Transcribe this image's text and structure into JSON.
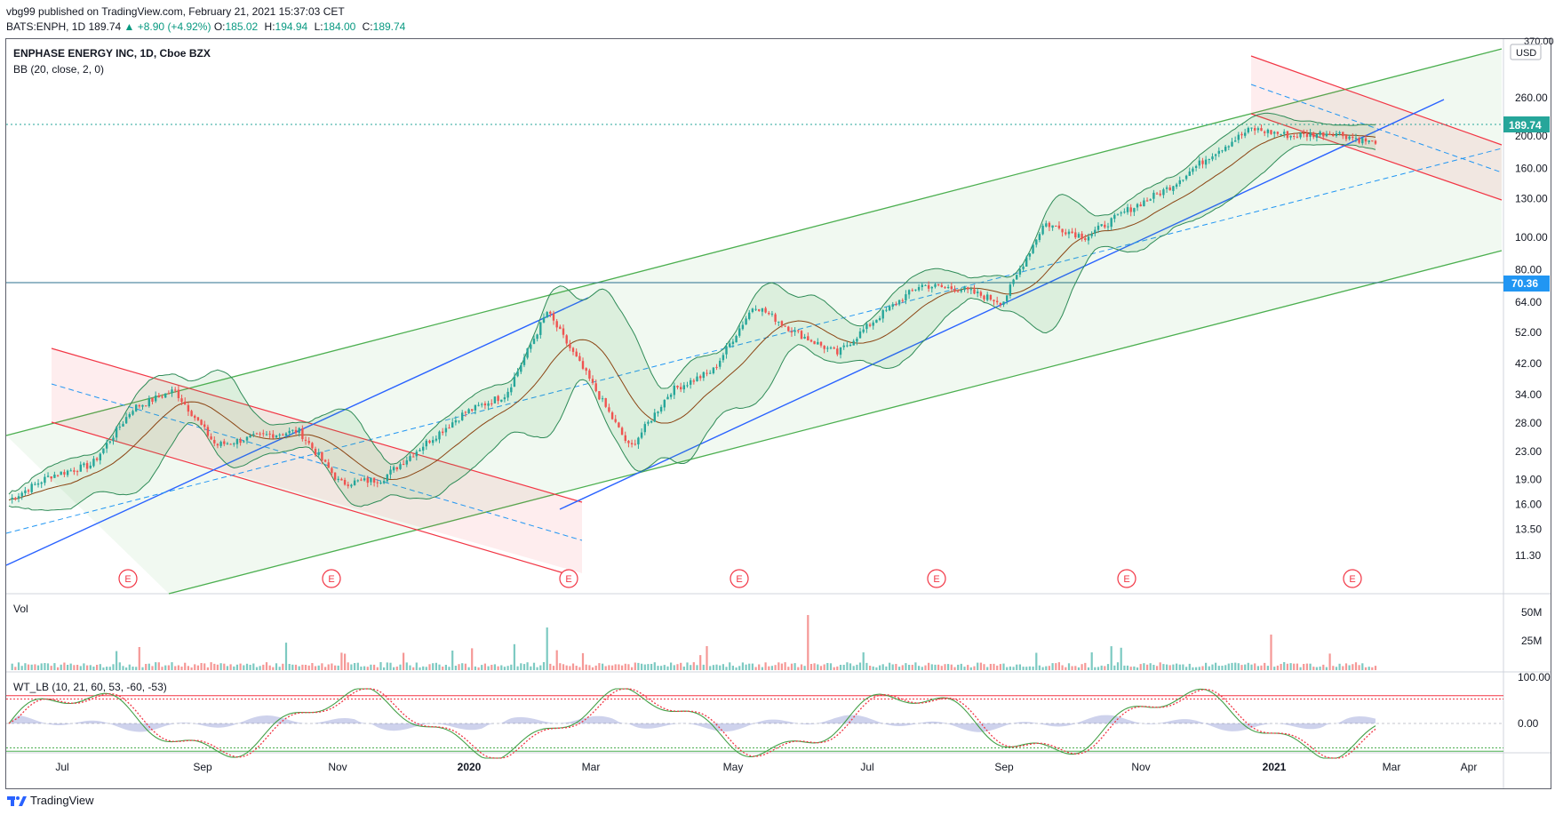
{
  "header": {
    "publisher": "vbg99 published on TradingView.com, February 21, 2021 15:37:03 CET",
    "symbol": "BATS:ENPH, 1D",
    "price": "189.74",
    "change": "▲ +8.90 (+4.92%)",
    "o_label": "O:",
    "o_value": "185.02",
    "h_label": "H:",
    "h_value": "194.94",
    "l_label": "L:",
    "l_value": "184.00",
    "c_label": "C:",
    "c_value": "189.74"
  },
  "chart": {
    "title": "ENPHASE ENERGY INC, 1D, Cboe BZX",
    "indicator": "BB (20, close, 2, 0)",
    "currency": "USD",
    "top_tick": "370.00",
    "price_badge": "189.74",
    "level_badge": "70.36",
    "vol_label": "Vol",
    "wt_label": "WT_LB (10, 21, 60, 53, -60, -53)",
    "earnings_marker": "E",
    "footer_brand": "TradingView"
  },
  "colors": {
    "up": "#26a69a",
    "down": "#ef5350",
    "green_channel": "#4caf50",
    "red_channel": "#f23645",
    "blue_line": "#2962ff",
    "bb_fill": "#e8f5e9",
    "badge": "#26a69a",
    "badge_blue": "#2196f3"
  },
  "chart_data": {
    "type": "candlestick",
    "title": "ENPHASE ENERGY INC, 1D, Cboe BZX",
    "y_scale": "log",
    "price_ticks": [
      "260.00",
      "200.00",
      "160.00",
      "130.00",
      "100.00",
      "80.00",
      "64.00",
      "52.00",
      "42.00",
      "34.00",
      "28.00",
      "23.00",
      "19.00",
      "16.00",
      "13.50",
      "11.30"
    ],
    "x_ticks": [
      "Jul",
      "Sep",
      "Nov",
      "2020",
      "Mar",
      "May",
      "Jul",
      "Sep",
      "Nov",
      "2021",
      "Mar",
      "Apr"
    ],
    "earnings_dates": [
      "2019-07",
      "2019-10",
      "2020-02",
      "2020-04",
      "2020-07",
      "2020-10",
      "2021-02"
    ],
    "horizontal_level": 70.36,
    "last_close": 189.74,
    "price_path": [
      {
        "date": "2019-06",
        "close": 16.5
      },
      {
        "date": "2019-07",
        "close": 19.5
      },
      {
        "date": "2019-07-25",
        "close": 21.0
      },
      {
        "date": "2019-08",
        "close": 31.0
      },
      {
        "date": "2019-08-25",
        "close": 35.0
      },
      {
        "date": "2019-09-15",
        "close": 24.0
      },
      {
        "date": "2019-10",
        "close": 25.5
      },
      {
        "date": "2019-10-20",
        "close": 26.5
      },
      {
        "date": "2019-11",
        "close": 18.5
      },
      {
        "date": "2019-11-25",
        "close": 19.0
      },
      {
        "date": "2019-12",
        "close": 24.0
      },
      {
        "date": "2020-01",
        "close": 30.0
      },
      {
        "date": "2020-02",
        "close": 34.0
      },
      {
        "date": "2020-02-15",
        "close": 60.0
      },
      {
        "date": "2020-03",
        "close": 38.0
      },
      {
        "date": "2020-03-15",
        "close": 23.5
      },
      {
        "date": "2020-04",
        "close": 35.0
      },
      {
        "date": "2020-04-20",
        "close": 40.0
      },
      {
        "date": "2020-05",
        "close": 63.0
      },
      {
        "date": "2020-05-20",
        "close": 52.0
      },
      {
        "date": "2020-06",
        "close": 45.0
      },
      {
        "date": "2020-07",
        "close": 58.0
      },
      {
        "date": "2020-07-25",
        "close": 72.0
      },
      {
        "date": "2020-08",
        "close": 70.0
      },
      {
        "date": "2020-09",
        "close": 64.0
      },
      {
        "date": "2020-10",
        "close": 110.0
      },
      {
        "date": "2020-10-20",
        "close": 100.0
      },
      {
        "date": "2020-11",
        "close": 120.0
      },
      {
        "date": "2020-12",
        "close": 140.0
      },
      {
        "date": "2020-12-20",
        "close": 175.0
      },
      {
        "date": "2021-01",
        "close": 210.0
      },
      {
        "date": "2021-01-20",
        "close": 200.0
      },
      {
        "date": "2021-02",
        "close": 205.0
      },
      {
        "date": "2021-02-19",
        "close": 189.74
      }
    ],
    "volume_axis": [
      "50M",
      "25M"
    ],
    "oscillator_axis": [
      "100.00",
      "0.00"
    ],
    "oscillator_levels": [
      60,
      53,
      -60,
      -53
    ]
  }
}
